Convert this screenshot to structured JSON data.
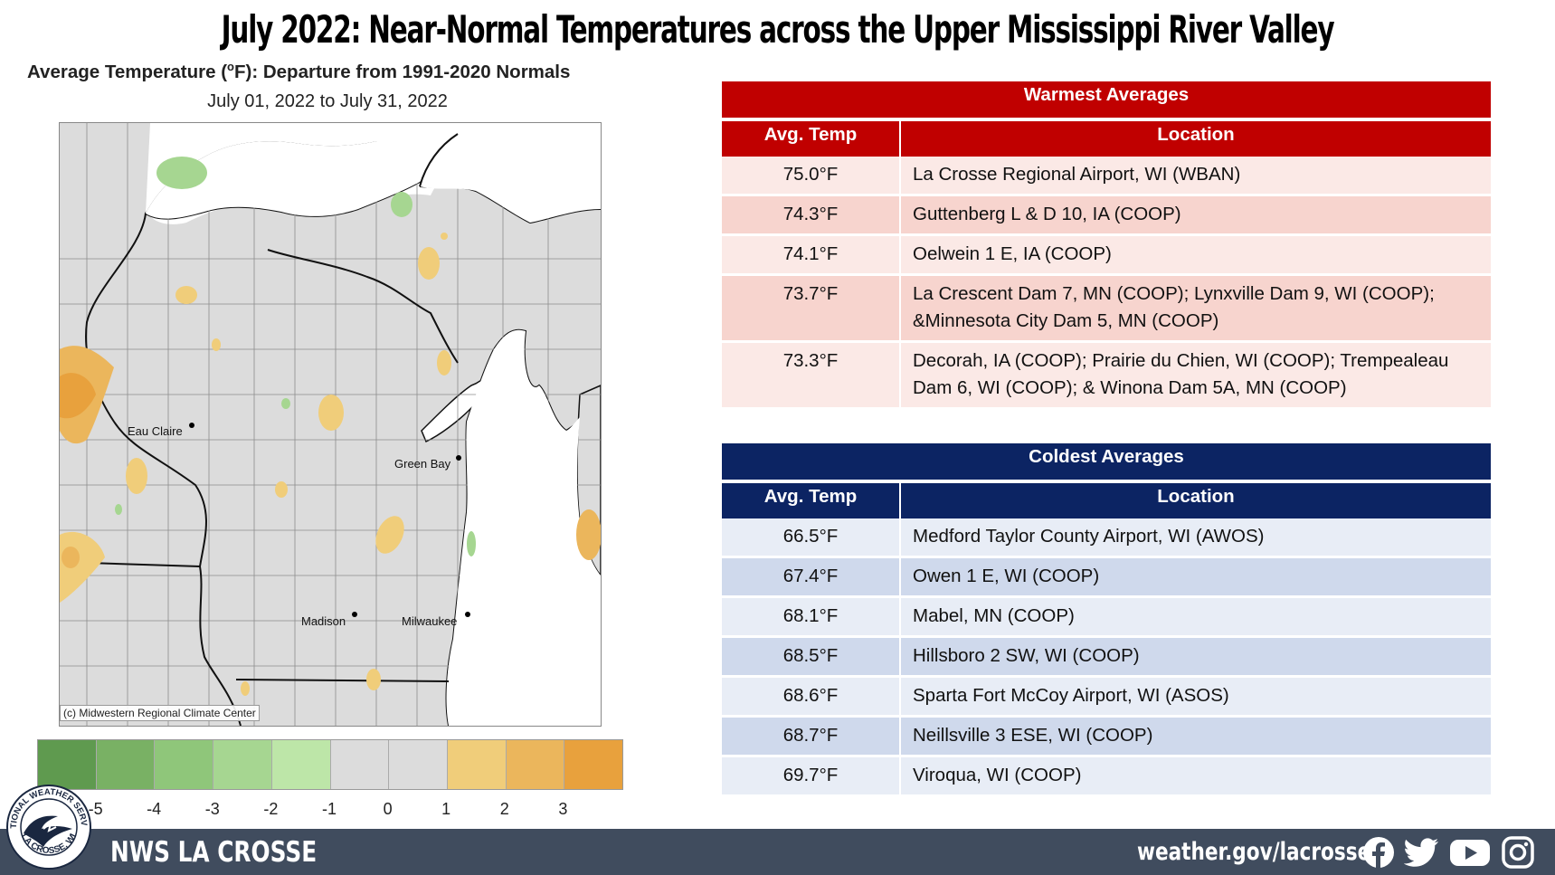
{
  "title": "July 2022:  Near-Normal Temperatures across the Upper Mississippi River Valley",
  "map": {
    "title_prefix": "Average Temperature (",
    "title_deg": "o",
    "title_suffix": "F): Departure from 1991-2020 Normals",
    "dates": "July 01, 2022 to July 31, 2022",
    "credit": "(c) Midwestern Regional Climate Center",
    "cities": [
      "Eau Claire",
      "Green Bay",
      "Madison",
      "Milwaukee"
    ],
    "legend_ticks": [
      "-5",
      "-4",
      "-3",
      "-2",
      "-1",
      "0",
      "1",
      "2",
      "3"
    ],
    "legend_colors": [
      "#5f9a4f",
      "#79b164",
      "#8fc67a",
      "#a6d691",
      "#bde6a8",
      "#dcdcdc",
      "#dcdcdc",
      "#f0cd7a",
      "#ebb65c",
      "#e8a13d"
    ]
  },
  "warmest": {
    "heading": "Warmest  Averages",
    "col_temp": "Avg. Temp",
    "col_loc": "Location",
    "rows": [
      {
        "temp": "75.0°F",
        "loc": "La Crosse Regional Airport, WI (WBAN)"
      },
      {
        "temp": "74.3°F",
        "loc": "Guttenberg L & D 10, IA (COOP)"
      },
      {
        "temp": "74.1°F",
        "loc": "Oelwein 1 E, IA (COOP)"
      },
      {
        "temp": "73.7°F",
        "loc": "La Crescent Dam 7, MN (COOP); Lynxville Dam 9, WI (COOP); &Minnesota City Dam 5, MN (COOP)"
      },
      {
        "temp": "73.3°F",
        "loc": "Decorah, IA (COOP); Prairie du Chien, WI (COOP); Trempealeau Dam 6, WI (COOP); & Winona Dam 5A, MN (COOP)"
      }
    ]
  },
  "coldest": {
    "heading": "Coldest Averages",
    "col_temp": "Avg. Temp",
    "col_loc": "Location",
    "rows": [
      {
        "temp": "66.5°F",
        "loc": "Medford Taylor County Airport, WI (AWOS)"
      },
      {
        "temp": "67.4°F",
        "loc": "Owen 1 E, WI (COOP)"
      },
      {
        "temp": "68.1°F",
        "loc": "Mabel, MN (COOP)"
      },
      {
        "temp": "68.5°F",
        "loc": "Hillsboro 2 SW, WI (COOP)"
      },
      {
        "temp": "68.6°F",
        "loc": "Sparta Fort McCoy Airport, WI (ASOS)"
      },
      {
        "temp": "68.7°F",
        "loc": "Neillsville 3 ESE, WI (COOP)"
      },
      {
        "temp": "69.7°F",
        "loc": "Viroqua, WI (COOP)"
      }
    ]
  },
  "footer": {
    "brand": "NWS LA CROSSE",
    "url": "weather.gov/lacrosse",
    "logo_text_top": "NATIONAL WEATHER SERVICE",
    "logo_text_bottom": "LA CROSSE, WI",
    "icons": [
      "facebook-icon",
      "twitter-icon",
      "youtube-icon",
      "instagram-icon"
    ]
  }
}
